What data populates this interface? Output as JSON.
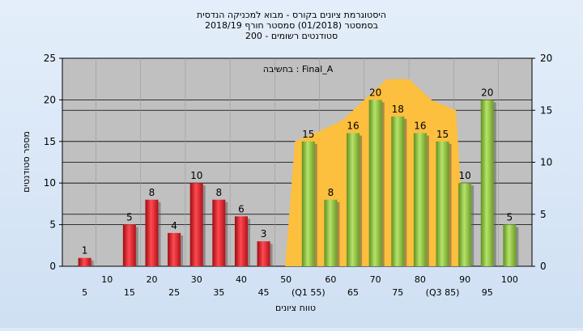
{
  "chart_data": {
    "type": "bar",
    "title_lines": [
      "היסטוגרמת ציונים בקורס - מבוא למכניקה הנדסית",
      "בסמסטר  (01/2018)  סמסטר חורף 2018/19",
      "סטודנטים רשומים - 200"
    ],
    "ylabel": "מספר סטודנטים",
    "xlabel": "טווח ציונים",
    "annotation": "בחשיבה : Final_A",
    "ylim": [
      0,
      25
    ],
    "yticks": [
      0,
      5,
      10,
      15,
      20,
      25
    ],
    "ylim_right": [
      0,
      20
    ],
    "yticks_right": [
      0,
      5,
      10,
      15,
      20
    ],
    "x_tick_labels_upper": [
      "10",
      "20",
      "30",
      "40",
      "50",
      "60",
      "70",
      "80",
      "90",
      "100"
    ],
    "x_tick_labels_lower": [
      "5",
      "15",
      "25",
      "35",
      "45",
      "(Q1 55)",
      "65",
      "75",
      "(Q3 85)",
      "95"
    ],
    "bins": [
      5,
      10,
      15,
      20,
      25,
      30,
      35,
      40,
      45,
      50,
      55,
      60,
      65,
      70,
      75,
      80,
      85,
      90,
      95,
      100
    ],
    "values": [
      1,
      0,
      5,
      8,
      4,
      10,
      8,
      6,
      3,
      0,
      15,
      8,
      16,
      20,
      18,
      16,
      15,
      10,
      20,
      5
    ],
    "value_labels": [
      "1",
      "",
      "5",
      "8",
      "4",
      "10",
      "8",
      "6",
      "3",
      "",
      "15",
      "8",
      "16",
      "20",
      "18",
      "16",
      "15",
      "10",
      "20",
      "5"
    ],
    "bar_colors": {
      "low": "#e0202a",
      "high": "#8cc63f"
    },
    "highlight_bins": [
      55,
      60,
      65,
      70,
      75,
      80,
      85
    ],
    "area_values_right": [
      12,
      13,
      14,
      16,
      18,
      18,
      16,
      15
    ],
    "area_color": "#fcbf3e",
    "grid_color": "#000000",
    "plot_bg": "#c0c0c0"
  }
}
